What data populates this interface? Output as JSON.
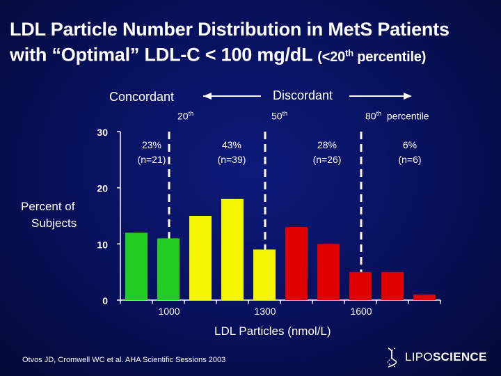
{
  "title": {
    "line1": "LDL Particle Number Distribution in MetS Patients",
    "line2_main": "with “Optimal” LDL-C < 100 mg/dL",
    "line2_paren_open": "(<20",
    "line2_sup": "th",
    "line2_paren_close": " percentile)"
  },
  "concordant_label": "Concordant",
  "discordant_label": "Discordant",
  "percentiles": [
    {
      "num": "20",
      "sup": "th",
      "suffix": ""
    },
    {
      "num": "50",
      "sup": "th",
      "suffix": ""
    },
    {
      "num": "80",
      "sup": "th",
      "suffix": "percentile"
    }
  ],
  "groups": [
    {
      "pct": "23%",
      "n": "(n=21)"
    },
    {
      "pct": "43%",
      "n": "(n=39)"
    },
    {
      "pct": "28%",
      "n": "(n=26)"
    },
    {
      "pct": "6%",
      "n": "(n=6)"
    }
  ],
  "ylabel_line1": "Percent of",
  "ylabel_line2": "Subjects",
  "citation": "Otvos JD, Cromwell WC et al. AHA Scientific Sessions 2003",
  "logo": {
    "part1": "LIPO",
    "part2": "SCIENCE"
  },
  "colors": {
    "green": "#22cc22",
    "yellow": "#f5f500",
    "red": "#e00000",
    "axis": "#ffffff"
  },
  "chart_data": {
    "type": "bar",
    "title": "LDL Particle Number Distribution in MetS Patients with “Optimal” LDL-C < 100 mg/dL (<20th percentile)",
    "xlabel": "LDL Particles (nmol/L)",
    "ylabel": "Percent of Subjects",
    "ylim": [
      0,
      30
    ],
    "yticks": [
      "0",
      "10",
      "20",
      "30"
    ],
    "xtick_labels": [
      {
        "label": "1000",
        "bin": 1.5
      },
      {
        "label": "1300",
        "bin": 4.5
      },
      {
        "label": "1600",
        "bin": 7.5
      }
    ],
    "percentile_cutoffs_bin": [
      1.5,
      4.5,
      7.5
    ],
    "bars": [
      {
        "value": 12,
        "group": "green"
      },
      {
        "value": 11,
        "group": "green"
      },
      {
        "value": 15,
        "group": "yellow"
      },
      {
        "value": 18,
        "group": "yellow"
      },
      {
        "value": 9,
        "group": "yellow"
      },
      {
        "value": 13,
        "group": "red"
      },
      {
        "value": 10,
        "group": "red"
      },
      {
        "value": 5,
        "group": "red"
      },
      {
        "value": 5,
        "group": "red"
      },
      {
        "value": 1,
        "group": "red"
      }
    ]
  }
}
